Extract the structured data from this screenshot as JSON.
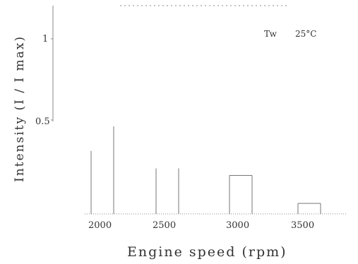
{
  "chart_data": {
    "type": "bar",
    "title": "",
    "xlabel": "Engine speed (rpm)",
    "ylabel": "Intensity (I / I max)",
    "categories": [
      "2000",
      "2500",
      "3000",
      "3500"
    ],
    "series": [
      {
        "values": [
          0.36,
          0.26,
          0.22,
          0.06
        ]
      },
      {
        "values": [
          0.5,
          0.26,
          0.22,
          0.06
        ]
      }
    ],
    "y_ticks": [
      "0.5",
      "1"
    ],
    "ylim": [
      0,
      1.15
    ],
    "grid": false,
    "annotation": {
      "label": "Tw",
      "value": "25°C"
    },
    "colors": {
      "bars": "#777777",
      "axis": "#888888",
      "text": "#333333"
    }
  }
}
